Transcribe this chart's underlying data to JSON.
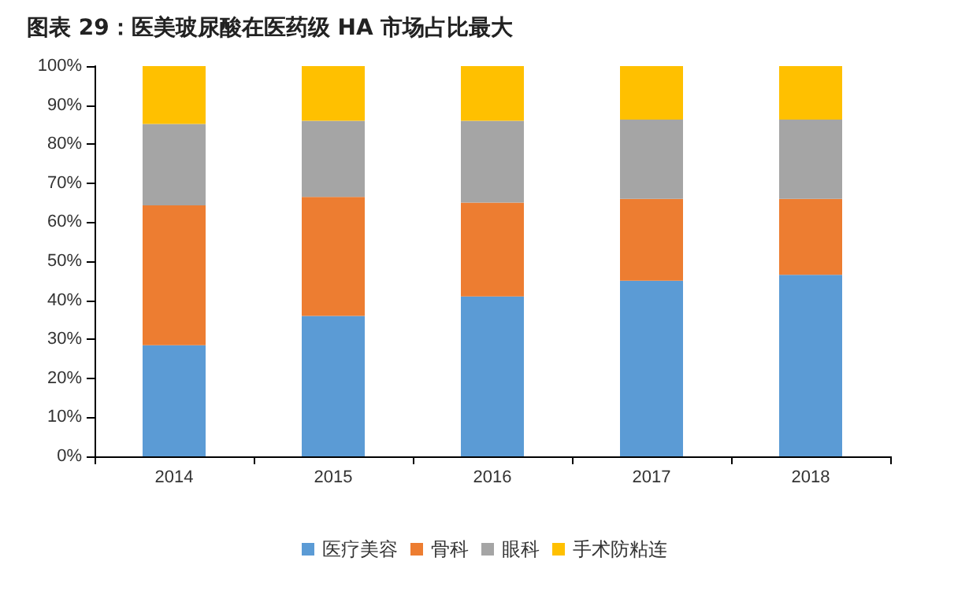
{
  "chart_data": {
    "type": "bar",
    "title": "图表 29：医美玻尿酸在医药级 HA 市场占比最大",
    "categories": [
      "2014",
      "2015",
      "2016",
      "2017",
      "2018"
    ],
    "stacked": true,
    "series": [
      {
        "name": "医疗美容",
        "color": "#5b9bd5",
        "values": [
          28.5,
          36,
          41,
          45,
          46.5
        ]
      },
      {
        "name": "骨科",
        "color": "#ed7d31",
        "values": [
          35.8,
          30.5,
          24,
          21,
          19.5
        ]
      },
      {
        "name": "眼科",
        "color": "#a5a5a5",
        "values": [
          20.9,
          19.5,
          21,
          20.3,
          20.3
        ]
      },
      {
        "name": "手术防粘连",
        "color": "#ffc000",
        "values": [
          14.8,
          14,
          14,
          13.7,
          13.7
        ]
      }
    ],
    "ylim": [
      0,
      100
    ],
    "yticks": [
      {
        "value": 0,
        "label": "0%"
      },
      {
        "value": 10,
        "label": "10%"
      },
      {
        "value": 20,
        "label": "20%"
      },
      {
        "value": 30,
        "label": "30%"
      },
      {
        "value": 40,
        "label": "40%"
      },
      {
        "value": 50,
        "label": "50%"
      },
      {
        "value": 60,
        "label": "60%"
      },
      {
        "value": 70,
        "label": "70%"
      },
      {
        "value": 80,
        "label": "80%"
      },
      {
        "value": 90,
        "label": "90%"
      },
      {
        "value": 100,
        "label": "100%"
      }
    ],
    "grid": false,
    "legend": "bottom"
  }
}
